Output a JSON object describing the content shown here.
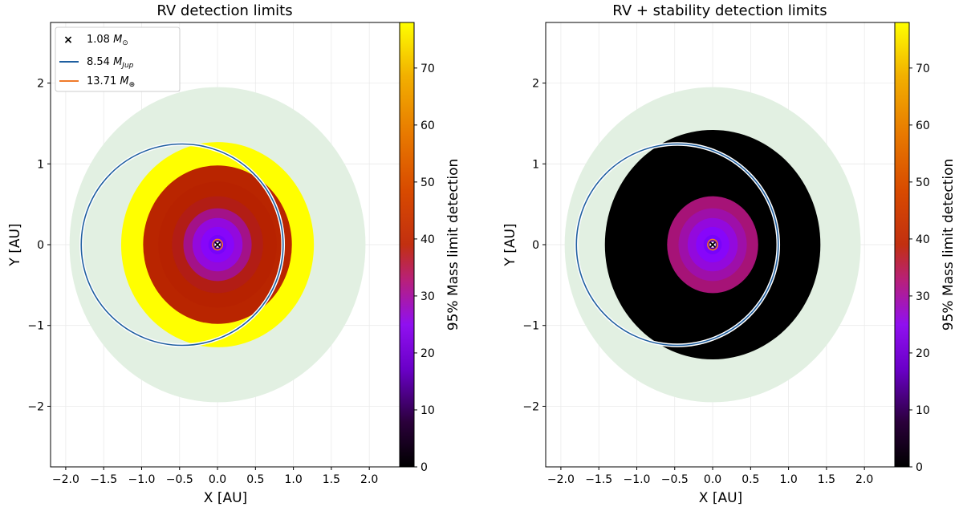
{
  "chart_data": [
    {
      "type": "heatmap",
      "title": "RV detection limits",
      "xlabel": "X [AU]",
      "ylabel": "Y [AU]",
      "xlim": [
        -2.2,
        2.4
      ],
      "ylim": [
        -2.75,
        2.75
      ],
      "xticks": [
        -2.0,
        -1.5,
        -1.0,
        -0.5,
        0.0,
        0.5,
        1.0,
        1.5,
        2.0
      ],
      "xtick_labels": [
        "−2.0",
        "−1.5",
        "−1.0",
        "−0.5",
        "0.0",
        "0.5",
        "1.0",
        "1.5",
        "2.0"
      ],
      "yticks": [
        -2,
        -1,
        0,
        1,
        2
      ],
      "ytick_labels": [
        "−2",
        "−1",
        "0",
        "1",
        "2"
      ],
      "habitable_region_radius_au": 1.95,
      "detection_rings": [
        {
          "outer_radius_au": 1.27,
          "mass_limit": 78
        },
        {
          "outer_radius_au": 0.98,
          "mass_limit": 41
        },
        {
          "outer_radius_au": 0.78,
          "mass_limit": 40
        },
        {
          "outer_radius_au": 0.6,
          "mass_limit": 38
        },
        {
          "outer_radius_au": 0.45,
          "mass_limit": 32
        },
        {
          "outer_radius_au": 0.33,
          "mass_limit": 26
        },
        {
          "outer_radius_au": 0.22,
          "mass_limit": 22
        },
        {
          "outer_radius_au": 0.12,
          "mass_limit": 17
        },
        {
          "outer_radius_au": 0.07,
          "mass_limit": 8
        }
      ],
      "orbits": [
        {
          "name": "8.54 M_Jup",
          "a_au": 1.33,
          "e": 0.35,
          "focus_at_min_x": false,
          "color": "#1f5fa0"
        },
        {
          "name": "13.71 M_Earth",
          "a_au": 0.065,
          "e": 0.0,
          "color": "#f07a2a"
        }
      ],
      "legend": {
        "position": "top-left",
        "entries": [
          {
            "marker": "x",
            "label_main": "1.08 ",
            "label_sym": "M",
            "label_sub": "⊙"
          },
          {
            "marker": "line",
            "color": "#1f5fa0",
            "label_main": "8.54 ",
            "label_sym": "M",
            "label_sub": "Jup"
          },
          {
            "marker": "line",
            "color": "#f07a2a",
            "label_main": "13.71 ",
            "label_sym": "M",
            "label_sub": "⊕"
          }
        ]
      },
      "colorbar": {
        "label": "95% Mass limit detection",
        "min": 0,
        "max": 78,
        "ticks": [
          0,
          10,
          20,
          30,
          40,
          50,
          60,
          70
        ],
        "tick_labels": [
          "0",
          "10",
          "20",
          "30",
          "40",
          "50",
          "60",
          "70"
        ],
        "colormap": "gnuplot"
      }
    },
    {
      "type": "heatmap",
      "title": "RV + stability detection limits",
      "xlabel": "X [AU]",
      "ylabel": "Y [AU]",
      "xlim": [
        -2.2,
        2.4
      ],
      "ylim": [
        -2.75,
        2.75
      ],
      "xticks": [
        -2.0,
        -1.5,
        -1.0,
        -0.5,
        0.0,
        0.5,
        1.0,
        1.5,
        2.0
      ],
      "xtick_labels": [
        "−2.0",
        "−1.5",
        "−1.0",
        "−0.5",
        "0.0",
        "0.5",
        "1.0",
        "1.5",
        "2.0"
      ],
      "yticks": [
        -2,
        -1,
        0,
        1,
        2
      ],
      "ytick_labels": [
        "−2",
        "−1",
        "0",
        "1",
        "2"
      ],
      "habitable_region_radius_au": 1.95,
      "detection_rings": [
        {
          "outer_radius_au": 1.42,
          "mass_limit": 0
        },
        {
          "outer_radius_au": 0.6,
          "mass_limit": 33
        },
        {
          "outer_radius_au": 0.45,
          "mass_limit": 30
        },
        {
          "outer_radius_au": 0.33,
          "mass_limit": 26
        },
        {
          "outer_radius_au": 0.22,
          "mass_limit": 22
        },
        {
          "outer_radius_au": 0.12,
          "mass_limit": 17
        },
        {
          "outer_radius_au": 0.07,
          "mass_limit": 8
        }
      ],
      "orbits": [
        {
          "name": "8.54 M_Jup",
          "a_au": 1.33,
          "e": 0.35,
          "color": "#1f5fa0"
        },
        {
          "name": "13.71 M_Earth",
          "a_au": 0.065,
          "e": 0.0,
          "color": "#f07a2a"
        }
      ],
      "colorbar": {
        "label": "95% Mass limit detection",
        "min": 0,
        "max": 78,
        "ticks": [
          0,
          10,
          20,
          30,
          40,
          50,
          60,
          70
        ],
        "tick_labels": [
          "0",
          "10",
          "20",
          "30",
          "40",
          "50",
          "60",
          "70"
        ],
        "colormap": "gnuplot"
      }
    }
  ]
}
